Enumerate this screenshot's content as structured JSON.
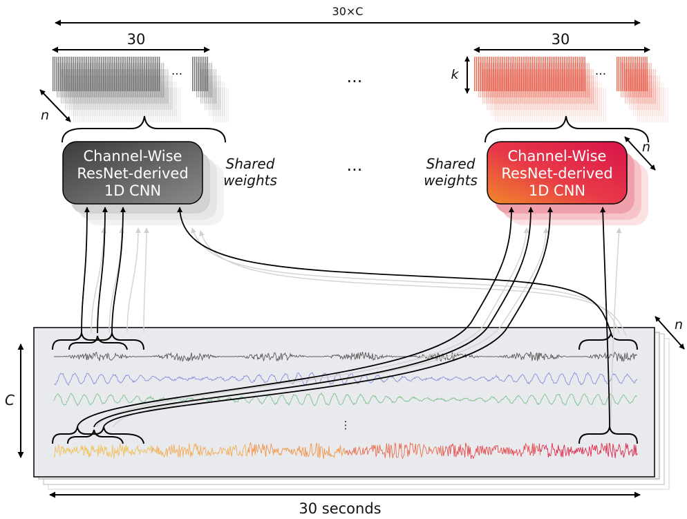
{
  "top_span_label": "30×C",
  "left_group": {
    "width_label": "30",
    "ellipsis": "···",
    "depth_label": "n"
  },
  "right_group": {
    "width_label": "30",
    "ellipsis": "···",
    "height_label": "k",
    "depth_label": "n"
  },
  "middle_ellipsis_top": "···",
  "middle_ellipsis_mid": "···",
  "cnn_left": {
    "line1": "Channel-Wise",
    "line2": "ResNet-derived",
    "line3": "1D CNN"
  },
  "cnn_right": {
    "line1": "Channel-Wise",
    "line2": "ResNet-derived",
    "line3": "1D CNN"
  },
  "shared_left": {
    "line1": "Shared",
    "line2": "weights"
  },
  "shared_right": {
    "line1": "Shared",
    "line2": "weights"
  },
  "cnn_right_depth_label": "n",
  "signal_panel": {
    "channels_label": "C",
    "vertical_ellipsis": "⋮",
    "depth_label": "n",
    "duration_label": "30 seconds"
  },
  "colors": {
    "gray_dark": "#555555",
    "gray_light": "#c8c8c8",
    "orange": "#f0964a",
    "red": "#e0284a",
    "yellow": "#f1c15a",
    "blue": "#8a8ad8",
    "green": "#7ac08a",
    "panel": "#e9eaee"
  }
}
